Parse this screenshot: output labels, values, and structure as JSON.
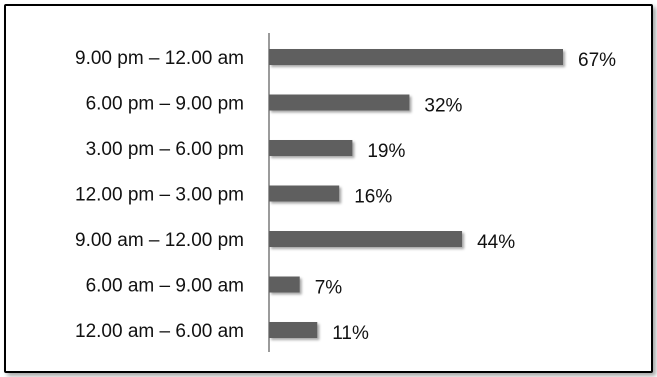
{
  "chart_data": {
    "type": "bar",
    "orientation": "horizontal",
    "categories": [
      "9.00 pm – 12.00 am",
      "6.00 pm – 9.00 pm",
      "3.00 pm – 6.00 pm",
      "12.00 pm – 3.00 pm",
      "9.00 am – 12.00 pm",
      "6.00 am – 9.00 am",
      "12.00 am – 6.00 am"
    ],
    "values": [
      67,
      32,
      19,
      16,
      44,
      7,
      11
    ],
    "value_labels": [
      "67%",
      "32%",
      "19%",
      "16%",
      "44%",
      "7%",
      "11%"
    ],
    "unit": "%",
    "xlim": [
      0,
      67
    ],
    "bar_color": "#5f5f5f",
    "grid": false,
    "legend": "none",
    "title": "",
    "xlabel": "",
    "ylabel": ""
  }
}
